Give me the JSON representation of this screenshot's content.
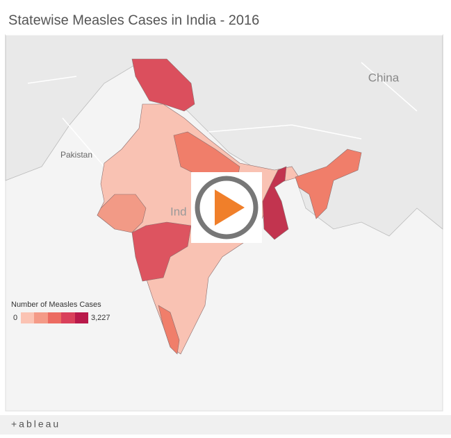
{
  "header": {
    "title": "Statewise Measles Cases in India - 2016"
  },
  "map": {
    "labels": {
      "china": "China",
      "pakistan": "Pakistan",
      "india": "Ind"
    }
  },
  "legend": {
    "title": "Number of Measles Cases",
    "min_label": "0",
    "max_label": "3,227"
  },
  "footer": {
    "brand": "+ableau"
  }
}
